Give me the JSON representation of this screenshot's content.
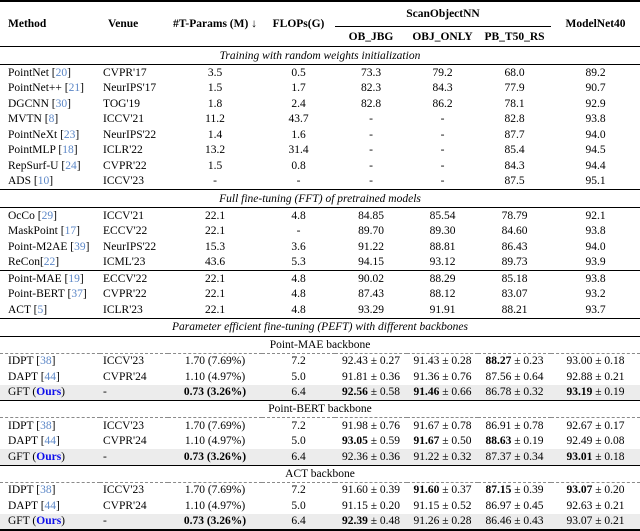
{
  "colors": {
    "citation_link": "#5c87c7",
    "ours_highlight": "#0d0deb",
    "row_highlight": "#ececec",
    "rule": "#000000"
  },
  "header": {
    "method": "Method",
    "venue": "Venue",
    "tparams": "#T-Params (M) ↓",
    "flops": "FLOPs(G)",
    "scanobjectnn": "ScanObjectNN",
    "modelnet40": "ModelNet40",
    "sub_columns": [
      "OB_JBG",
      "OBJ_ONLY",
      "PB_T50_RS"
    ]
  },
  "table": {
    "sections": [
      {
        "title": "Training with random weights initialization",
        "blocks": [
          [
            {
              "method": "PointNet",
              "cite": "20",
              "venue": "CVPR'17",
              "params": "3.5",
              "flops": "0.5",
              "results": [
                "73.3",
                "79.2",
                "68.0",
                "89.2"
              ]
            },
            {
              "method": "PointNet++",
              "cite": "21",
              "venue": "NeurIPS'17",
              "params": "1.5",
              "flops": "1.7",
              "results": [
                "82.3",
                "84.3",
                "77.9",
                "90.7"
              ]
            },
            {
              "method": "DGCNN",
              "cite": "30",
              "venue": "TOG'19",
              "params": "1.8",
              "flops": "2.4",
              "results": [
                "82.8",
                "86.2",
                "78.1",
                "92.9"
              ]
            },
            {
              "method": "MVTN",
              "cite": "8",
              "venue": "ICCV'21",
              "params": "11.2",
              "flops": "43.7",
              "results": [
                "-",
                "-",
                "82.8",
                "93.8"
              ]
            },
            {
              "method": "PointNeXt",
              "cite": "23",
              "venue": "NeurIPS'22",
              "params": "1.4",
              "flops": "1.6",
              "results": [
                "-",
                "-",
                "87.7",
                "94.0"
              ]
            },
            {
              "method": "PointMLP",
              "cite": "18",
              "venue": "ICLR'22",
              "params": "13.2",
              "flops": "31.4",
              "results": [
                "-",
                "-",
                "85.4",
                "94.5"
              ]
            },
            {
              "method": "RepSurf-U",
              "cite": "24",
              "venue": "CVPR'22",
              "params": "1.5",
              "flops": "0.8",
              "results": [
                "-",
                "-",
                "84.3",
                "94.4"
              ]
            },
            {
              "method": "ADS",
              "cite": "10",
              "venue": "ICCV'23",
              "params": "-",
              "flops": "-",
              "results": [
                "-",
                "-",
                "87.5",
                "95.1"
              ]
            }
          ]
        ]
      },
      {
        "title": "Full fine-tuning (FFT) of pretrained models",
        "blocks": [
          [
            {
              "method": "OcCo",
              "cite": "29",
              "venue": "ICCV'21",
              "params": "22.1",
              "flops": "4.8",
              "results": [
                "84.85",
                "85.54",
                "78.79",
                "92.1"
              ]
            },
            {
              "method": "MaskPoint",
              "cite": "17",
              "venue": "ECCV'22",
              "params": "22.1",
              "flops": "-",
              "results": [
                "89.70",
                "89.30",
                "84.60",
                "93.8"
              ]
            },
            {
              "method": "Point-M2AE",
              "cite": "39",
              "venue": "NeurIPS'22",
              "params": "15.3",
              "flops": "3.6",
              "results": [
                "91.22",
                "88.81",
                "86.43",
                "94.0"
              ]
            },
            {
              "method": "ReCon",
              "cite": "22",
              "cite_space": false,
              "venue": "ICML'23",
              "params": "43.6",
              "flops": "5.3",
              "results": [
                "94.15",
                "93.12",
                "89.73",
                "93.9"
              ]
            }
          ],
          [
            {
              "method": "Point-MAE",
              "cite": "19",
              "venue": "ECCV'22",
              "params": "22.1",
              "flops": "4.8",
              "results": [
                "90.02",
                "88.29",
                "85.18",
                "93.8"
              ]
            },
            {
              "method": "Point-BERT",
              "cite": "37",
              "venue": "CVPR'22",
              "params": "22.1",
              "flops": "4.8",
              "results": [
                "87.43",
                "88.12",
                "83.07",
                "93.2"
              ]
            },
            {
              "method": "ACT",
              "cite": "5",
              "venue": "ICLR'23",
              "params": "22.1",
              "flops": "4.8",
              "results": [
                "93.29",
                "91.91",
                "88.21",
                "93.7"
              ]
            }
          ]
        ]
      },
      {
        "title": "Parameter efficient fine-tuning (PEFT) with different backbones",
        "subsections": [
          {
            "name": "Point-MAE backbone",
            "rows": [
              {
                "method": "IDPT",
                "cite": "38",
                "venue": "ICCV'23",
                "params": "1.70 (7.69%)",
                "flops": "7.2",
                "results": [
                  {
                    "v": "92.43",
                    "pm": "0.27"
                  },
                  {
                    "v": "91.43",
                    "pm": "0.28"
                  },
                  {
                    "v": "88.27",
                    "pm": "0.23",
                    "b": true
                  },
                  {
                    "v": "93.00",
                    "pm": "0.18"
                  }
                ]
              },
              {
                "method": "DAPT",
                "cite": "44",
                "venue": "CVPR'24",
                "params": "1.10 (4.97%)",
                "flops": "5.0",
                "results": [
                  {
                    "v": "91.81",
                    "pm": "0.36"
                  },
                  {
                    "v": "91.36",
                    "pm": "0.76"
                  },
                  {
                    "v": "87.56",
                    "pm": "0.64"
                  },
                  {
                    "v": "92.88",
                    "pm": "0.21"
                  }
                ]
              },
              {
                "method": "GFT",
                "ours": "Ours",
                "venue": "-",
                "params": "0.73 (3.26%)",
                "params_bold": true,
                "flops": "6.4",
                "highlight": true,
                "results": [
                  {
                    "v": "92.56",
                    "pm": "0.58",
                    "b": true
                  },
                  {
                    "v": "91.46",
                    "pm": "0.66",
                    "b": true
                  },
                  {
                    "v": "86.78",
                    "pm": "0.32"
                  },
                  {
                    "v": "93.19",
                    "pm": "0.19",
                    "b": true
                  }
                ]
              }
            ]
          },
          {
            "name": "Point-BERT backbone",
            "rows": [
              {
                "method": "IDPT",
                "cite": "38",
                "venue": "ICCV'23",
                "params": "1.70 (7.69%)",
                "flops": "7.2",
                "results": [
                  {
                    "v": "91.98",
                    "pm": "0.76"
                  },
                  {
                    "v": "91.67",
                    "pm": "0.78"
                  },
                  {
                    "v": "86.91",
                    "pm": "0.78"
                  },
                  {
                    "v": "92.67",
                    "pm": "0.17"
                  }
                ]
              },
              {
                "method": "DAPT",
                "cite": "44",
                "venue": "CVPR'24",
                "params": "1.10 (4.97%)",
                "flops": "5.0",
                "results": [
                  {
                    "v": "93.05",
                    "pm": "0.59",
                    "b": true
                  },
                  {
                    "v": "91.67",
                    "pm": "0.50",
                    "b": true
                  },
                  {
                    "v": "88.63",
                    "pm": "0.19",
                    "b": true
                  },
                  {
                    "v": "92.49",
                    "pm": "0.08"
                  }
                ]
              },
              {
                "method": "GFT",
                "ours": "Ours",
                "venue": "-",
                "params": "0.73 (3.26%)",
                "params_bold": true,
                "flops": "6.4",
                "highlight": true,
                "results": [
                  {
                    "v": "92.36",
                    "pm": "0.36"
                  },
                  {
                    "v": "91.22",
                    "pm": "0.32"
                  },
                  {
                    "v": "87.37",
                    "pm": "0.34"
                  },
                  {
                    "v": "93.01",
                    "pm": "0.18",
                    "b": true
                  }
                ]
              }
            ]
          },
          {
            "name": "ACT backbone",
            "rows": [
              {
                "method": "IDPT",
                "cite": "38",
                "venue": "ICCV'23",
                "params": "1.70 (7.69%)",
                "flops": "7.2",
                "results": [
                  {
                    "v": "91.60",
                    "pm": "0.39"
                  },
                  {
                    "v": "91.60",
                    "pm": "0.37",
                    "b": true
                  },
                  {
                    "v": "87.15",
                    "pm": "0.39",
                    "b": true
                  },
                  {
                    "v": "93.07",
                    "pm": "0.20",
                    "b": true
                  }
                ]
              },
              {
                "method": "DAPT",
                "cite": "44",
                "venue": "CVPR'24",
                "params": "1.10 (4.97%)",
                "flops": "5.0",
                "results": [
                  {
                    "v": "91.15",
                    "pm": "0.20"
                  },
                  {
                    "v": "91.15",
                    "pm": "0.52"
                  },
                  {
                    "v": "86.97",
                    "pm": "0.45"
                  },
                  {
                    "v": "92.63",
                    "pm": "0.21"
                  }
                ]
              },
              {
                "method": "GFT",
                "ours": "Ours",
                "venue": "-",
                "params": "0.73 (3.26%)",
                "params_bold": true,
                "flops": "6.4",
                "highlight": true,
                "results": [
                  {
                    "v": "92.39",
                    "pm": "0.48",
                    "b": true
                  },
                  {
                    "v": "91.26",
                    "pm": "0.28"
                  },
                  {
                    "v": "86.46",
                    "pm": "0.43"
                  },
                  {
                    "v": "93.07",
                    "pm": "0.21"
                  }
                ]
              }
            ]
          }
        ]
      }
    ]
  }
}
